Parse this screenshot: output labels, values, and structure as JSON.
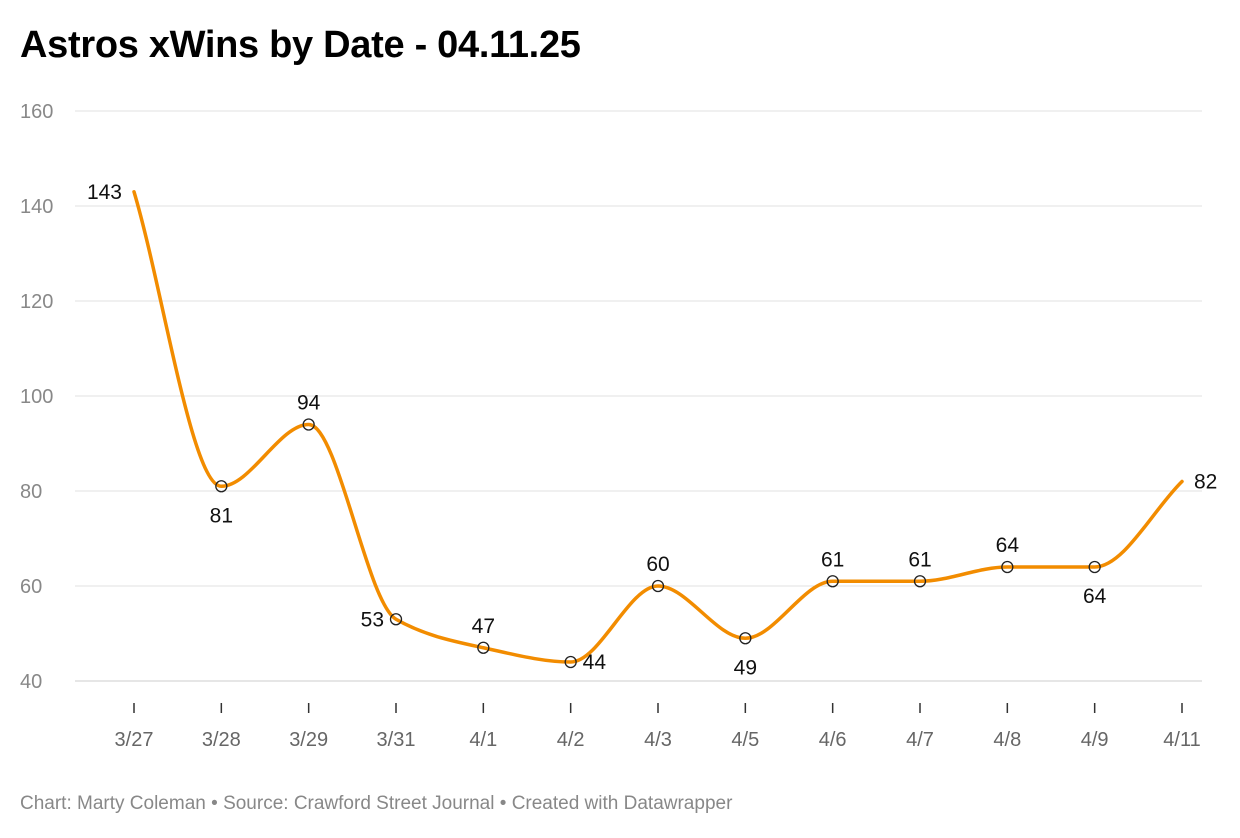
{
  "title": "Astros xWins by Date - 04.11.25",
  "footer": {
    "chart_by": "Chart: Marty Coleman",
    "source": "Source: Crawford Street Journal",
    "created_with": "Created with Datawrapper",
    "separator": " • "
  },
  "colors": {
    "line": "#f28c00",
    "grid": "#e0e0e0",
    "axis_label": "#888888",
    "data_label": "#111111",
    "tick": "#333333"
  },
  "chart_data": {
    "type": "line",
    "title": "Astros xWins by Date - 04.11.25",
    "xlabel": "",
    "ylabel": "",
    "categories": [
      "3/27",
      "3/28",
      "3/29",
      "3/31",
      "4/1",
      "4/2",
      "4/3",
      "4/5",
      "4/6",
      "4/7",
      "4/8",
      "4/9",
      "4/11"
    ],
    "series": [
      {
        "values": [
          143,
          81,
          94,
          53,
          47,
          44,
          60,
          49,
          61,
          61,
          64,
          64,
          82
        ]
      }
    ],
    "ylim": [
      40,
      160
    ],
    "yticks": [
      40,
      60,
      80,
      100,
      120,
      140,
      160
    ],
    "grid": "horizontal",
    "curve": "smooth",
    "markers": "circles on interior points",
    "data_label_positions": [
      "left",
      "below",
      "above",
      "left",
      "above",
      "right",
      "above",
      "below",
      "above",
      "above",
      "above",
      "below",
      "right"
    ]
  }
}
